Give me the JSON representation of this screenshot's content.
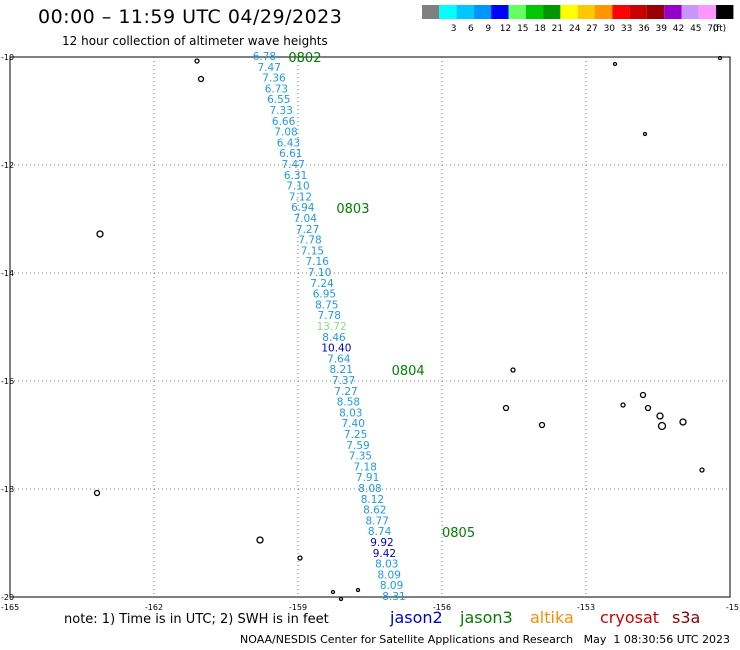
{
  "title": "00:00 – 11:59 UTC 04/29/2023",
  "subtitle": "12 hour collection of altimeter wave heights",
  "colorbar": {
    "unit": "(ft)",
    "bins": [
      {
        "label": "",
        "color": "#808080"
      },
      {
        "label": "3",
        "color": "#00ffff"
      },
      {
        "label": "6",
        "color": "#00c8ff"
      },
      {
        "label": "9",
        "color": "#0096ff"
      },
      {
        "label": "12",
        "color": "#0000ff"
      },
      {
        "label": "15",
        "color": "#64ff64"
      },
      {
        "label": "18",
        "color": "#00c800"
      },
      {
        "label": "21",
        "color": "#009600"
      },
      {
        "label": "24",
        "color": "#ffff00"
      },
      {
        "label": "27",
        "color": "#ffc800"
      },
      {
        "label": "30",
        "color": "#ff9600"
      },
      {
        "label": "33",
        "color": "#ff0000"
      },
      {
        "label": "36",
        "color": "#c80000"
      },
      {
        "label": "39",
        "color": "#960000"
      },
      {
        "label": "42",
        "color": "#9600c8"
      },
      {
        "label": "45",
        "color": "#c896ff"
      },
      {
        "label": "70",
        "color": "#ff96ff"
      },
      {
        "label": "",
        "color": "#000000"
      }
    ]
  },
  "axes": {
    "x_ticks": [
      "-165",
      "-162",
      "-159",
      "-156",
      "-153",
      "-15"
    ],
    "y_ticks": [
      "-10",
      "-12",
      "-14",
      "-16",
      "-18",
      "-20"
    ]
  },
  "track": {
    "points": [
      {
        "lon": -159.7,
        "lat": -10.0,
        "swh": "6.78"
      },
      {
        "lon": -159.6,
        "lat": -10.2,
        "swh": "7.47"
      },
      {
        "lon": -159.5,
        "lat": -10.4,
        "swh": "7.36"
      },
      {
        "lon": -159.45,
        "lat": -10.6,
        "swh": "6.73"
      },
      {
        "lon": -159.4,
        "lat": -10.8,
        "swh": "6.55"
      },
      {
        "lon": -159.35,
        "lat": -11.0,
        "swh": "7.33"
      },
      {
        "lon": -159.3,
        "lat": -11.2,
        "swh": "6.66"
      },
      {
        "lon": -159.25,
        "lat": -11.4,
        "swh": "7.08"
      },
      {
        "lon": -159.2,
        "lat": -11.6,
        "swh": "6.43"
      },
      {
        "lon": -159.15,
        "lat": -11.8,
        "swh": "6.61"
      },
      {
        "lon": -159.1,
        "lat": -12.0,
        "swh": "7.47"
      },
      {
        "lon": -159.05,
        "lat": -12.2,
        "swh": "6.31"
      },
      {
        "lon": -159.0,
        "lat": -12.4,
        "swh": "7.10"
      },
      {
        "lon": -158.95,
        "lat": -12.6,
        "swh": "7.12"
      },
      {
        "lon": -158.9,
        "lat": -12.8,
        "swh": "6.94"
      },
      {
        "lon": -158.85,
        "lat": -13.0,
        "swh": "7.04"
      },
      {
        "lon": -158.8,
        "lat": -13.2,
        "swh": "7.27"
      },
      {
        "lon": -158.75,
        "lat": -13.4,
        "swh": "7.78"
      },
      {
        "lon": -158.7,
        "lat": -13.6,
        "swh": "7.15"
      },
      {
        "lon": -158.6,
        "lat": -13.8,
        "swh": "7.16"
      },
      {
        "lon": -158.55,
        "lat": -14.0,
        "swh": "7.10"
      },
      {
        "lon": -158.5,
        "lat": -14.2,
        "swh": "7.24"
      },
      {
        "lon": -158.45,
        "lat": -14.4,
        "swh": "6.95"
      },
      {
        "lon": -158.4,
        "lat": -14.6,
        "swh": "8.75"
      },
      {
        "lon": -158.35,
        "lat": -14.8,
        "swh": "7.78"
      },
      {
        "lon": -158.3,
        "lat": -15.0,
        "swh": "13.72"
      },
      {
        "lon": -158.25,
        "lat": -15.2,
        "swh": "8.46"
      },
      {
        "lon": -158.2,
        "lat": -15.4,
        "swh": "10.40"
      },
      {
        "lon": -158.15,
        "lat": -15.6,
        "swh": "7.64"
      },
      {
        "lon": -158.1,
        "lat": -15.8,
        "swh": "8.21"
      },
      {
        "lon": -158.05,
        "lat": -16.0,
        "swh": "7.37"
      },
      {
        "lon": -158.0,
        "lat": -16.2,
        "swh": "7.27"
      },
      {
        "lon": -157.95,
        "lat": -16.4,
        "swh": "8.58"
      },
      {
        "lon": -157.9,
        "lat": -16.6,
        "swh": "8.03"
      },
      {
        "lon": -157.85,
        "lat": -16.8,
        "swh": "7.40"
      },
      {
        "lon": -157.8,
        "lat": -17.0,
        "swh": "7.25"
      },
      {
        "lon": -157.75,
        "lat": -17.2,
        "swh": "7.59"
      },
      {
        "lon": -157.7,
        "lat": -17.4,
        "swh": "7.35"
      },
      {
        "lon": -157.6,
        "lat": -17.6,
        "swh": "7.18"
      },
      {
        "lon": -157.55,
        "lat": -17.8,
        "swh": "7.91"
      },
      {
        "lon": -157.5,
        "lat": -18.0,
        "swh": "8.08"
      },
      {
        "lon": -157.45,
        "lat": -18.2,
        "swh": "8.12"
      },
      {
        "lon": -157.4,
        "lat": -18.4,
        "swh": "8.62"
      },
      {
        "lon": -157.35,
        "lat": -18.6,
        "swh": "8.77"
      },
      {
        "lon": -157.3,
        "lat": -18.8,
        "swh": "8.74"
      },
      {
        "lon": -157.25,
        "lat": -19.0,
        "swh": "9.92"
      },
      {
        "lon": -157.2,
        "lat": -19.2,
        "swh": "9.42"
      },
      {
        "lon": -157.15,
        "lat": -19.4,
        "swh": "8.03"
      },
      {
        "lon": -157.1,
        "lat": -19.6,
        "swh": "8.09"
      },
      {
        "lon": -157.05,
        "lat": -19.8,
        "swh": "8.09"
      },
      {
        "lon": -157.0,
        "lat": -20.0,
        "swh": "8.31"
      }
    ],
    "time_labels": [
      {
        "text": "0802",
        "lon": -159.2,
        "lat": -10.0
      },
      {
        "text": "0803",
        "lon": -158.2,
        "lat": -12.8
      },
      {
        "text": "0804",
        "lon": -157.05,
        "lat": -15.8
      },
      {
        "text": "0805",
        "lon": -156.0,
        "lat": -18.8
      }
    ]
  },
  "note": "note:  1) Time is in UTC; 2) SWH is in feet",
  "legend": [
    {
      "label": "jason2",
      "color": "#0000cc"
    },
    {
      "label": "jason3",
      "color": "#008000"
    },
    {
      "label": "altika",
      "color": "#ff8c00"
    },
    {
      "label": "cryosat",
      "color": "#cc0000"
    },
    {
      "label": "s3a",
      "color": "#8b0000"
    }
  ],
  "credit": "NOAA/NESDIS Center for Satellite Applications and Research   May  1 08:30:56 UTC 2023"
}
